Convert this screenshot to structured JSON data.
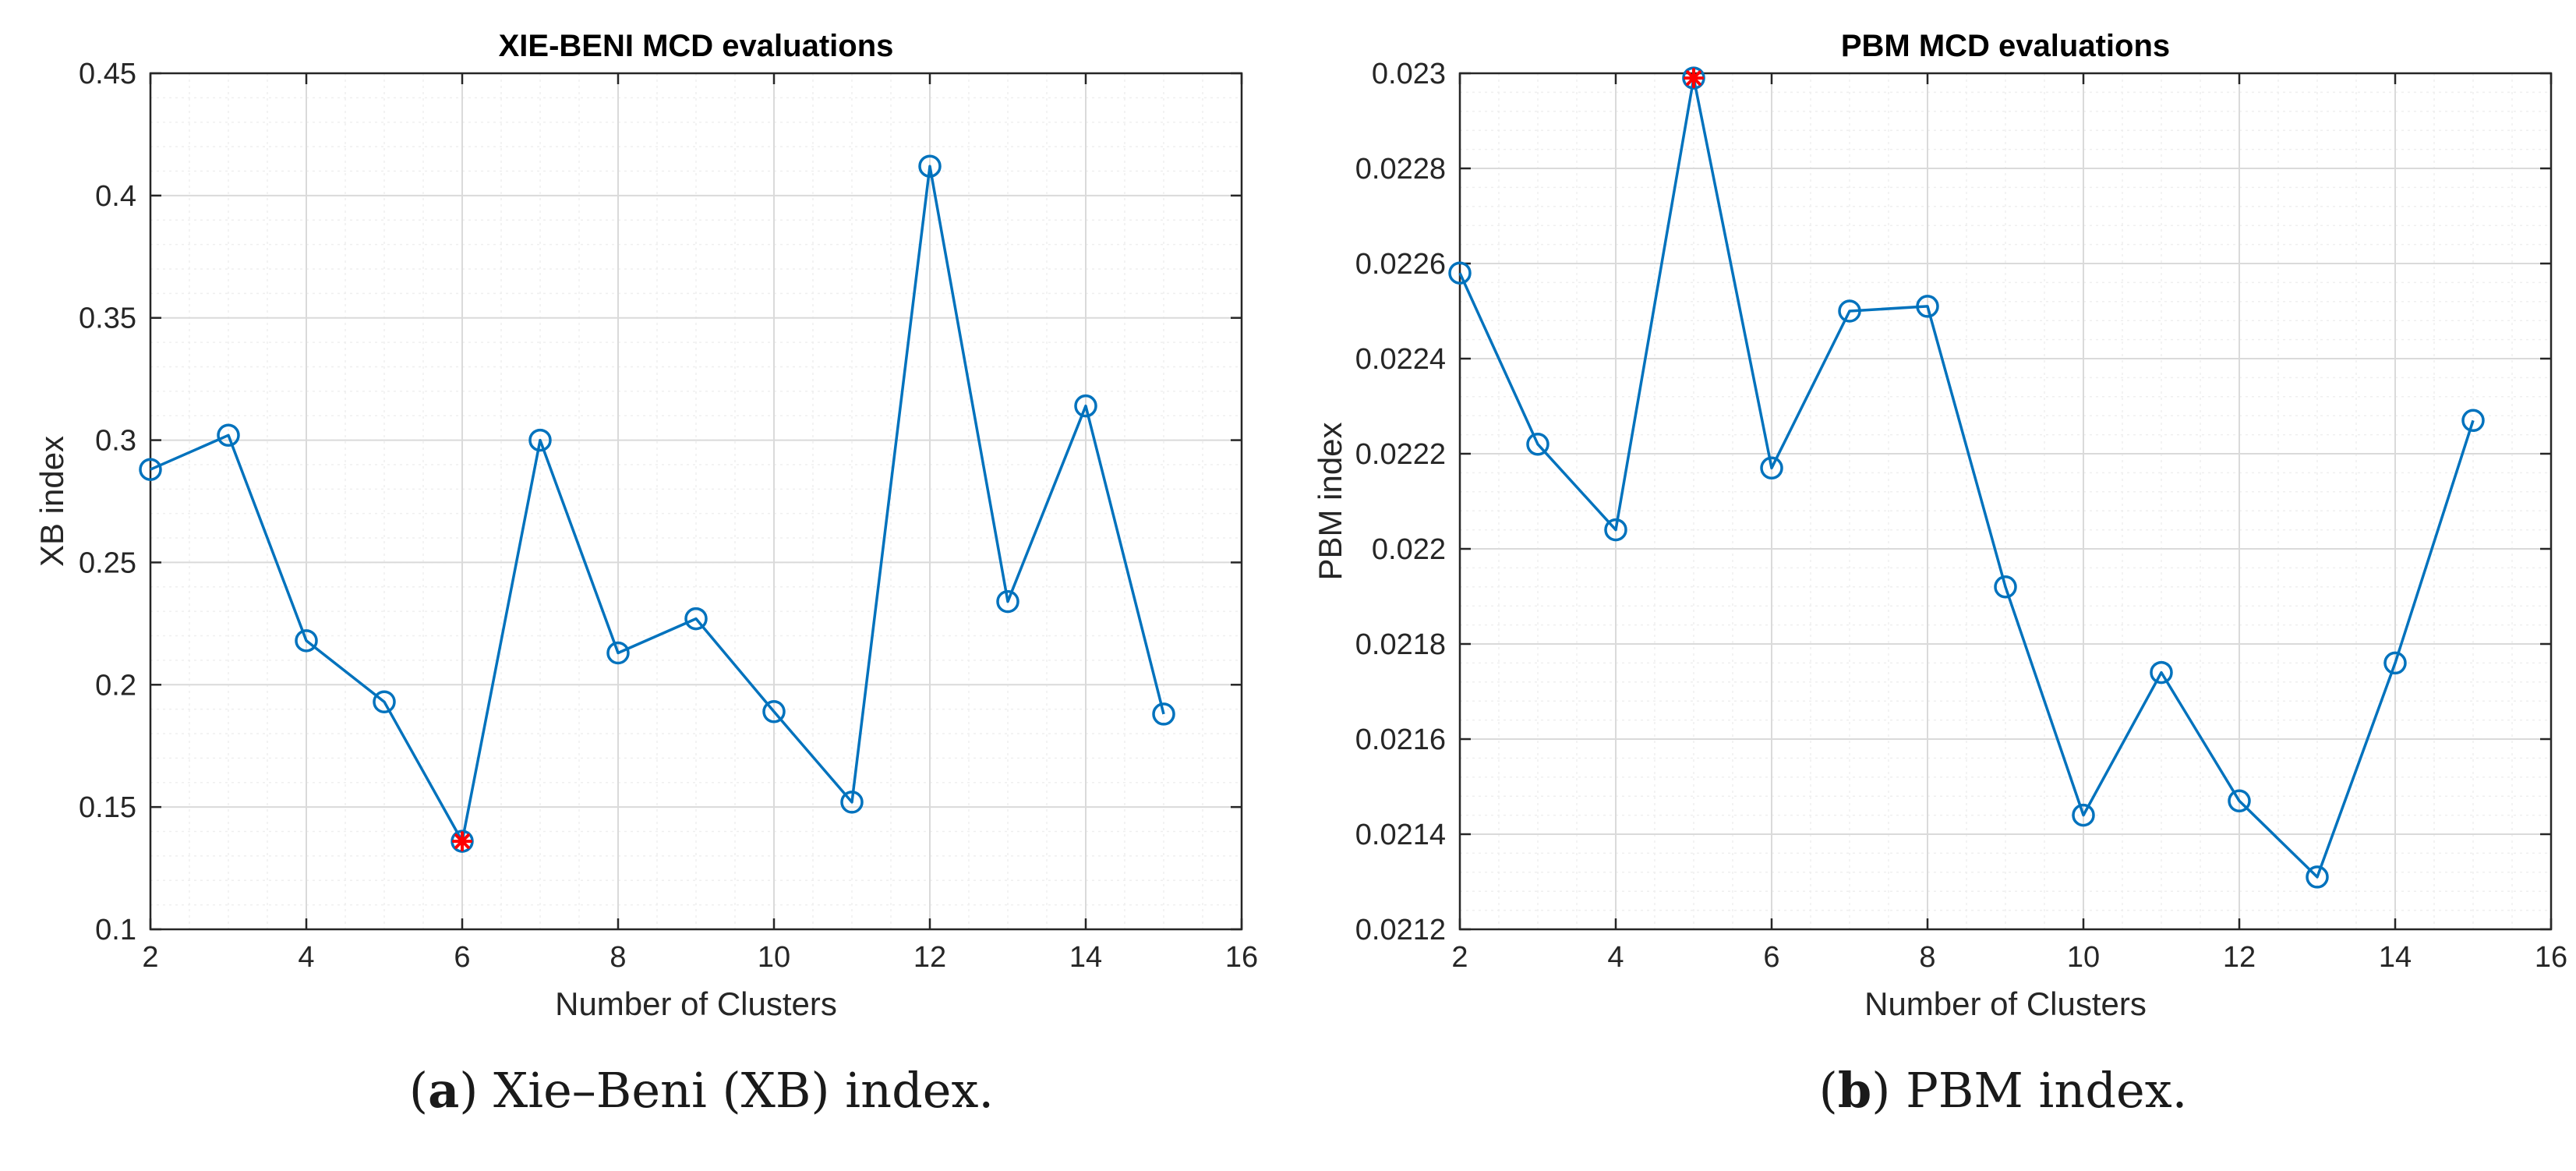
{
  "colors": {
    "line": "#0072BD",
    "highlight": "#FF0000",
    "axis": "#262626",
    "grid": "#E3E3E3"
  },
  "chart_data": [
    {
      "type": "line",
      "title": "XIE-BENI MCD evaluations",
      "xlabel": "Number of Clusters",
      "ylabel": "XB index",
      "xlim": [
        2,
        16
      ],
      "ylim": [
        0.1,
        0.45
      ],
      "xticks": [
        2,
        4,
        6,
        8,
        10,
        12,
        14,
        16
      ],
      "yticks": [
        0.1,
        0.15,
        0.2,
        0.25,
        0.3,
        0.35,
        0.4,
        0.45
      ],
      "ytick_labels": [
        "0.1",
        "0.15",
        "0.2",
        "0.25",
        "0.3",
        "0.35",
        "0.4",
        "0.45"
      ],
      "grid": true,
      "minor_grid": true,
      "marker": "circle",
      "series": [
        {
          "x": [
            2,
            3,
            4,
            5,
            6,
            7,
            8,
            9,
            10,
            11,
            12,
            13,
            14,
            15
          ],
          "values": [
            0.288,
            0.302,
            0.218,
            0.193,
            0.136,
            0.3,
            0.213,
            0.227,
            0.189,
            0.152,
            0.412,
            0.234,
            0.314,
            0.188
          ]
        }
      ],
      "highlight": {
        "x": 6,
        "y": 0.136
      },
      "caption": {
        "letter": "a",
        "text": ") Xie–Beni (XB) index."
      }
    },
    {
      "type": "line",
      "title": "PBM MCD evaluations",
      "xlabel": "Number of Clusters",
      "ylabel": "PBM index",
      "xlim": [
        2,
        16
      ],
      "ylim": [
        0.0212,
        0.023
      ],
      "xticks": [
        2,
        4,
        6,
        8,
        10,
        12,
        14,
        16
      ],
      "yticks": [
        0.0212,
        0.0214,
        0.0216,
        0.0218,
        0.022,
        0.0222,
        0.0224,
        0.0226,
        0.0228,
        0.023
      ],
      "ytick_labels": [
        "0.0212",
        "0.0214",
        "0.0216",
        "0.0218",
        "0.022",
        "0.0222",
        "0.0224",
        "0.0226",
        "0.0228",
        "0.023"
      ],
      "grid": true,
      "minor_grid": true,
      "marker": "circle",
      "series": [
        {
          "x": [
            2,
            3,
            4,
            5,
            6,
            7,
            8,
            9,
            10,
            11,
            12,
            13,
            14,
            15
          ],
          "values": [
            0.02258,
            0.02222,
            0.02204,
            0.02299,
            0.02217,
            0.0225,
            0.02251,
            0.02192,
            0.02144,
            0.02174,
            0.02147,
            0.02131,
            0.02176,
            0.02227
          ]
        }
      ],
      "highlight": {
        "x": 5,
        "y": 0.02299
      },
      "caption": {
        "letter": "b",
        "text": ") PBM index."
      }
    }
  ]
}
